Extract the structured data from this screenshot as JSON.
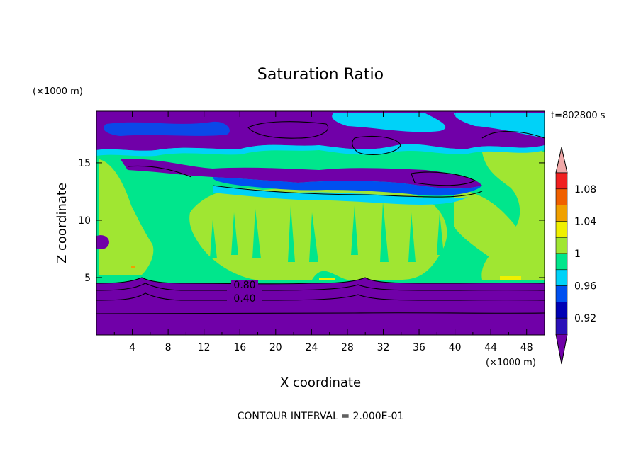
{
  "chart_data": {
    "type": "heatmap",
    "title": "Saturation Ratio",
    "xlabel": "X coordinate",
    "ylabel": "Z coordinate",
    "x_unit": "(×1000 m)",
    "y_unit": "(×1000 m)",
    "time_label": "t=802800 s",
    "footer": "CONTOUR INTERVAL = 2.000E-01",
    "xlim": [
      0,
      50
    ],
    "ylim": [
      0,
      19.5
    ],
    "x_ticks": [
      4,
      8,
      12,
      16,
      20,
      24,
      28,
      32,
      36,
      40,
      44,
      48
    ],
    "y_ticks": [
      5,
      10,
      15
    ],
    "contour_labels": [
      {
        "text": "0.80",
        "x": 16.5,
        "y": 4.3
      },
      {
        "text": "0.40",
        "x": 16.5,
        "y": 3.1
      }
    ],
    "colorbar": {
      "levels": [
        0.9,
        0.92,
        0.94,
        0.96,
        0.98,
        1.0,
        1.02,
        1.04,
        1.06,
        1.08,
        1.1
      ],
      "tick_labels": [
        "0.92",
        "0.96",
        "1",
        "1.04",
        "1.08"
      ],
      "colors": [
        "#7000a8",
        "#2a10b8",
        "#0000b4",
        "#0050f0",
        "#00d2f8",
        "#00e68c",
        "#a0e632",
        "#f0f000",
        "#f0a000",
        "#f06000",
        "#f02020",
        "#f0a8a8"
      ]
    },
    "regions": {
      "upper_layer": "0.90",
      "mid_layer": "0.98–1.02",
      "lower_layer": "<0.90"
    }
  }
}
